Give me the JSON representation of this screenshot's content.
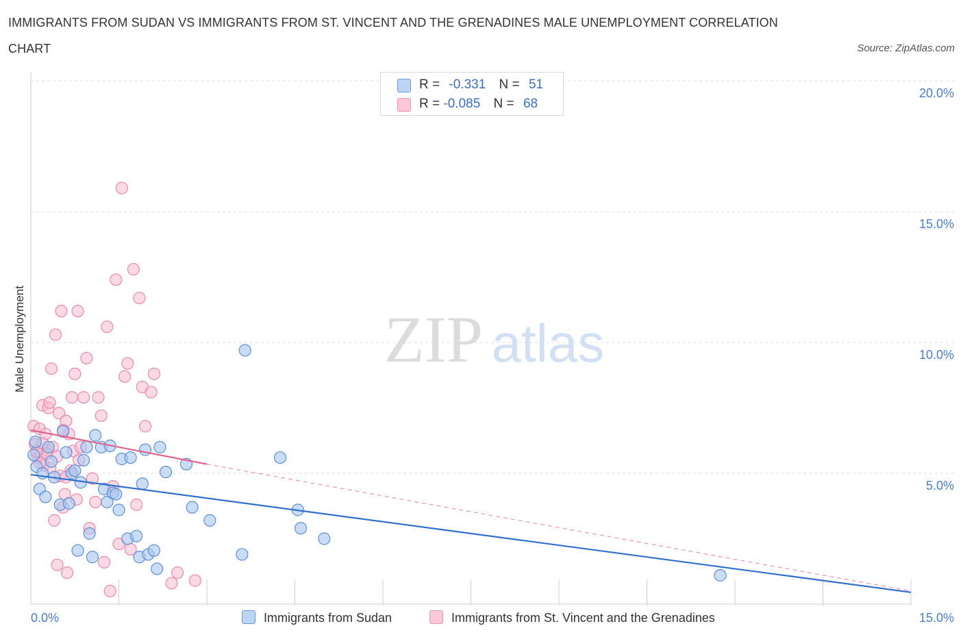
{
  "chart_data": {
    "type": "scatter",
    "title": "IMMIGRANTS FROM SUDAN VS IMMIGRANTS FROM ST. VINCENT AND THE GRENADINES MALE UNEMPLOYMENT CORRELATION CHART",
    "source": "Source: ZipAtlas.com",
    "ylabel": "Male Unemployment",
    "xlabel": "",
    "xlim": [
      0,
      15
    ],
    "ylim": [
      0,
      20
    ],
    "x_tick_labels": [
      "0.0%",
      "15.0%"
    ],
    "y_tick_labels": [
      "5.0%",
      "10.0%",
      "15.0%",
      "20.0%"
    ],
    "y_ticks": [
      5,
      10,
      15,
      20
    ],
    "x_minor_ticks": [
      1.5,
      3.0,
      4.5,
      6.0,
      7.5,
      9.0,
      10.5,
      12.0,
      13.5,
      15.0
    ],
    "watermark": {
      "zip": "ZIP",
      "atlas": "atlas"
    },
    "legend": {
      "series1": {
        "r_label": "R =",
        "r_value": "-0.331",
        "n_label": "N =",
        "n_value": "51"
      },
      "series2": {
        "r_label": "R =",
        "r_value": "-0.085",
        "n_label": "N =",
        "n_value": "68"
      }
    },
    "colors": {
      "sudan_fill": "#a9c7f0",
      "sudan_stroke": "#5b8fd6",
      "sudan_line": "#2f6fce",
      "svg_fill": "#f7bcd0",
      "svg_stroke": "#e88aab",
      "svg_line": "#e0628e",
      "grid": "#dddddd",
      "axis_label": "#4a7cc9"
    },
    "series": [
      {
        "name": "Immigrants from Sudan",
        "trend": {
          "x0": 0.0,
          "y0": 4.95,
          "x1": 15.0,
          "y1": 0.45
        },
        "points": [
          [
            0.1,
            5.25
          ],
          [
            0.15,
            4.4
          ],
          [
            0.2,
            5.0
          ],
          [
            0.25,
            4.1
          ],
          [
            0.3,
            6.0
          ],
          [
            0.35,
            5.45
          ],
          [
            0.4,
            4.85
          ],
          [
            0.5,
            3.8
          ],
          [
            0.55,
            6.6
          ],
          [
            0.6,
            5.8
          ],
          [
            0.65,
            3.85
          ],
          [
            0.7,
            5.0
          ],
          [
            0.75,
            5.1
          ],
          [
            0.8,
            2.05
          ],
          [
            0.85,
            4.65
          ],
          [
            0.9,
            5.5
          ],
          [
            0.95,
            6.0
          ],
          [
            1.0,
            2.7
          ],
          [
            1.05,
            1.8
          ],
          [
            1.1,
            6.45
          ],
          [
            1.2,
            6.0
          ],
          [
            1.25,
            4.4
          ],
          [
            1.3,
            3.9
          ],
          [
            1.35,
            6.05
          ],
          [
            1.4,
            4.25
          ],
          [
            1.45,
            4.2
          ],
          [
            1.5,
            3.6
          ],
          [
            1.55,
            5.55
          ],
          [
            1.65,
            2.5
          ],
          [
            1.7,
            5.6
          ],
          [
            1.8,
            2.6
          ],
          [
            1.85,
            1.8
          ],
          [
            1.9,
            4.6
          ],
          [
            1.95,
            5.9
          ],
          [
            2.0,
            1.9
          ],
          [
            2.1,
            2.05
          ],
          [
            2.15,
            1.35
          ],
          [
            2.2,
            6.0
          ],
          [
            2.3,
            5.05
          ],
          [
            2.65,
            5.35
          ],
          [
            2.75,
            3.7
          ],
          [
            3.05,
            3.2
          ],
          [
            3.6,
            1.9
          ],
          [
            3.65,
            9.7
          ],
          [
            4.25,
            5.6
          ],
          [
            4.55,
            3.6
          ],
          [
            4.6,
            2.9
          ],
          [
            5.0,
            2.5
          ],
          [
            11.75,
            1.1
          ],
          [
            0.05,
            5.7
          ],
          [
            0.08,
            6.2
          ]
        ]
      },
      {
        "name": "Immigrants from St. Vincent and the Grenadines",
        "trend": {
          "x0": 0.0,
          "y0": 6.65,
          "x1": 3.0,
          "y1": 5.35,
          "dash_x1": 15.0,
          "dash_y1": 0.5
        },
        "points": [
          [
            0.05,
            6.8
          ],
          [
            0.07,
            6.1
          ],
          [
            0.1,
            5.8
          ],
          [
            0.12,
            5.6
          ],
          [
            0.15,
            6.7
          ],
          [
            0.18,
            5.75
          ],
          [
            0.2,
            7.6
          ],
          [
            0.22,
            5.3
          ],
          [
            0.25,
            6.5
          ],
          [
            0.28,
            5.9
          ],
          [
            0.3,
            7.5
          ],
          [
            0.32,
            7.7
          ],
          [
            0.35,
            9.0
          ],
          [
            0.37,
            6.0
          ],
          [
            0.4,
            3.2
          ],
          [
            0.42,
            10.3
          ],
          [
            0.45,
            1.5
          ],
          [
            0.48,
            7.3
          ],
          [
            0.5,
            4.9
          ],
          [
            0.52,
            11.2
          ],
          [
            0.55,
            3.7
          ],
          [
            0.58,
            4.2
          ],
          [
            0.6,
            7.0
          ],
          [
            0.62,
            1.2
          ],
          [
            0.65,
            6.5
          ],
          [
            0.68,
            5.1
          ],
          [
            0.7,
            7.9
          ],
          [
            0.72,
            5.85
          ],
          [
            0.75,
            8.8
          ],
          [
            0.78,
            4.0
          ],
          [
            0.8,
            11.2
          ],
          [
            0.82,
            5.5
          ],
          [
            0.85,
            6.0
          ],
          [
            0.9,
            7.9
          ],
          [
            0.95,
            9.4
          ],
          [
            1.0,
            2.9
          ],
          [
            1.05,
            4.8
          ],
          [
            1.1,
            3.9
          ],
          [
            1.15,
            7.9
          ],
          [
            1.2,
            7.2
          ],
          [
            1.25,
            1.6
          ],
          [
            1.3,
            10.6
          ],
          [
            1.35,
            0.5
          ],
          [
            1.4,
            4.5
          ],
          [
            1.45,
            12.4
          ],
          [
            1.5,
            2.3
          ],
          [
            1.55,
            15.9
          ],
          [
            1.6,
            8.7
          ],
          [
            1.65,
            9.2
          ],
          [
            1.7,
            2.1
          ],
          [
            1.75,
            12.8
          ],
          [
            1.8,
            3.8
          ],
          [
            1.85,
            11.7
          ],
          [
            1.9,
            8.3
          ],
          [
            1.95,
            6.8
          ],
          [
            2.05,
            8.1
          ],
          [
            2.1,
            8.8
          ],
          [
            2.4,
            0.8
          ],
          [
            2.5,
            1.2
          ],
          [
            2.8,
            0.9
          ],
          [
            0.27,
            5.75
          ],
          [
            0.33,
            5.2
          ],
          [
            0.6,
            4.85
          ],
          [
            0.15,
            5.4
          ],
          [
            0.1,
            5.85
          ],
          [
            0.2,
            6.15
          ],
          [
            0.45,
            5.65
          ],
          [
            0.55,
            6.65
          ]
        ]
      }
    ]
  }
}
